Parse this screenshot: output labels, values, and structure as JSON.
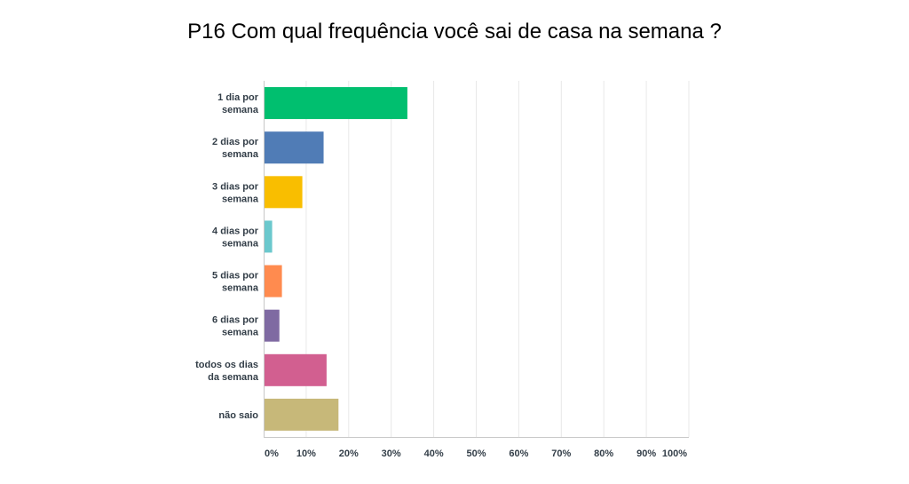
{
  "chart_data": {
    "type": "bar",
    "orientation": "horizontal",
    "title": "P16 Com qual frequência você sai de casa na semana ?",
    "categories": [
      [
        "1 dia por",
        "semana"
      ],
      [
        "2 dias por",
        "semana"
      ],
      [
        "3 dias por",
        "semana"
      ],
      [
        "4 dias por",
        "semana"
      ],
      [
        "5 dias por",
        "semana"
      ],
      [
        "6 dias por",
        "semana"
      ],
      [
        "todos os dias",
        "da semana"
      ],
      [
        "não saio"
      ]
    ],
    "values": [
      33.8,
      14.1,
      9.1,
      2.0,
      4.3,
      3.7,
      14.8,
      17.6
    ],
    "colors": [
      "#00bf6f",
      "#507cb6",
      "#f9be00",
      "#6bc8cd",
      "#ff8b4f",
      "#7f6aa2",
      "#d25f90",
      "#c7b879"
    ],
    "xlim": [
      0,
      100
    ],
    "xticks": [
      "0%",
      "10%",
      "20%",
      "30%",
      "40%",
      "50%",
      "60%",
      "70%",
      "80%",
      "90%",
      "100%"
    ],
    "xticks_values": [
      0,
      10,
      20,
      30,
      40,
      50,
      60,
      70,
      80,
      90,
      100
    ],
    "grid": true,
    "legend": "none"
  }
}
